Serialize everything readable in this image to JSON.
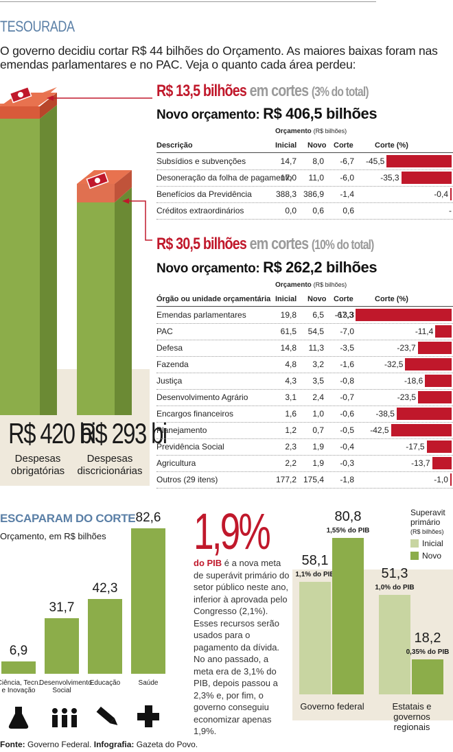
{
  "kicker": "TESOURADA",
  "intro": "O governo decidiu cortar R$ 44 bilhões do Orçamento. As maiores baixas foram nas emendas parlamentares e no PAC. Veja o quanto cada área perdeu:",
  "colors": {
    "red": "#c0182b",
    "green": "#8cad4a",
    "light_green": "#c8d5a1",
    "blue": "#5a7fa6",
    "beige": "#efe9dc"
  },
  "mandatory": {
    "cut_amount": "R$ 13,5 bilhões",
    "cut_word": "em cortes",
    "cut_share": "(3% do total)",
    "new_budget_label": "Novo orçamento:",
    "new_budget_value": "R$ 406,5 bilhões",
    "total_value": "R$ 420 bi",
    "total_caption_1": "Despesas",
    "total_caption_2": "obrigatórias"
  },
  "discretionary": {
    "cut_amount": "R$ 30,5 bilhões",
    "cut_word": "em cortes",
    "cut_share": "(10% do total)",
    "new_budget_label": "Novo orçamento:",
    "new_budget_value": "R$ 262,2 bilhões",
    "total_value": "R$ 293 bi",
    "total_caption_1": "Despesas",
    "total_caption_2": "discricionárias"
  },
  "table_headers": {
    "group": "Orçamento",
    "group_unit": "(R$ bilhões)",
    "desc1": "Descrição",
    "desc2": "Órgão ou unidade orçamentária",
    "initial": "Inicial",
    "new": "Novo",
    "cut": "Corte",
    "cut_pct": "Corte (%)"
  },
  "chart_data": [
    {
      "type": "table",
      "title": "Despesas obrigatórias — cortes",
      "columns": [
        "Descrição",
        "Inicial",
        "Novo",
        "Corte",
        "Corte (%)"
      ],
      "rows": [
        {
          "name": "Subsídios e subvenções",
          "initial": "14,7",
          "new": "8,0",
          "cut": "-6,7",
          "pct_label": "-45,5",
          "pct": -45.5
        },
        {
          "name": "Desoneração da folha de pagamento",
          "initial": "17,0",
          "new": "11,0",
          "cut": "-6,0",
          "pct_label": "-35,3",
          "pct": -35.3
        },
        {
          "name": "Benefícios da Previdência",
          "initial": "388,3",
          "new": "386,9",
          "cut": "-1,4",
          "pct_label": "-0,4",
          "pct": -0.4
        },
        {
          "name": "Créditos extraordinários",
          "initial": "0,0",
          "new": "0,6",
          "cut": "0,6",
          "pct_label": "-",
          "pct": 0
        }
      ]
    },
    {
      "type": "table",
      "title": "Despesas discricionárias — cortes",
      "columns": [
        "Órgão ou unidade orçamentária",
        "Inicial",
        "Novo",
        "Corte",
        "Corte (%)"
      ],
      "rows": [
        {
          "name": "Emendas parlamentares",
          "initial": "19,8",
          "new": "6,5",
          "cut": "-13,3",
          "pct_label": "-67,3",
          "pct": -67.3
        },
        {
          "name": "PAC",
          "initial": "61,5",
          "new": "54,5",
          "cut": "-7,0",
          "pct_label": "-11,4",
          "pct": -11.4
        },
        {
          "name": "Defesa",
          "initial": "14,8",
          "new": "11,3",
          "cut": "-3,5",
          "pct_label": "-23,7",
          "pct": -23.7
        },
        {
          "name": "Fazenda",
          "initial": "4,8",
          "new": "3,2",
          "cut": "-1,6",
          "pct_label": "-32,5",
          "pct": -32.5
        },
        {
          "name": "Justiça",
          "initial": "4,3",
          "new": "3,5",
          "cut": "-0,8",
          "pct_label": "-18,6",
          "pct": -18.6
        },
        {
          "name": "Desenvolvimento Agrário",
          "initial": "3,1",
          "new": "2,4",
          "cut": "-0,7",
          "pct_label": "-23,5",
          "pct": -23.5
        },
        {
          "name": "Encargos financeiros",
          "initial": "1,6",
          "new": "1,0",
          "cut": "-0,6",
          "pct_label": "-38,5",
          "pct": -38.5
        },
        {
          "name": "Planejamento",
          "initial": "1,2",
          "new": "0,7",
          "cut": "-0,5",
          "pct_label": "-42,5",
          "pct": -42.5
        },
        {
          "name": "Previdência Social",
          "initial": "2,3",
          "new": "1,9",
          "cut": "-0,4",
          "pct_label": "-17,5",
          "pct": -17.5
        },
        {
          "name": "Agricultura",
          "initial": "2,2",
          "new": "1,9",
          "cut": "-0,3",
          "pct_label": "-13,7",
          "pct": -13.7
        },
        {
          "name": "Outros (29 itens)",
          "initial": "177,2",
          "new": "175,4",
          "cut": "-1,8",
          "pct_label": "-1,0",
          "pct": -1.0
        }
      ]
    },
    {
      "type": "bar",
      "title": "ESCAPARAM DO CORTE",
      "subtitle": "Orçamento, em R$ bilhões",
      "categories": [
        "Ciência, Tecn. e Inovação",
        "Desenvolvimento Social",
        "Educação",
        "Saúde"
      ],
      "values": [
        6.9,
        31.7,
        42.3,
        82.6
      ],
      "value_labels": [
        "6,9",
        "31,7",
        "42,3",
        "82,6"
      ],
      "ylim": [
        0,
        82.6
      ]
    },
    {
      "type": "bar",
      "title": "Superavit primário",
      "unit": "(R$ bilhões)",
      "categories": [
        "Governo federal",
        "Estatais e governos regionais"
      ],
      "series": [
        {
          "name": "Inicial",
          "values": [
            58.1,
            51.3
          ],
          "value_labels": [
            "58,1",
            "51,3"
          ],
          "pib_labels": [
            "1,1% do PIB",
            "1,0% do PIB"
          ]
        },
        {
          "name": "Novo",
          "values": [
            80.8,
            18.2
          ],
          "value_labels": [
            "80,8",
            "18,2"
          ],
          "pib_labels": [
            "1,55% do PIB",
            "0,35% do PIB"
          ]
        }
      ],
      "ylim": [
        0,
        80.8
      ]
    },
    {
      "type": "bar",
      "title": "Despesas obrigatórias e discricionárias (R$ bi)",
      "categories": [
        "Despesas obrigatórias",
        "Despesas discricionárias"
      ],
      "values": [
        420,
        293
      ],
      "cuts": [
        13.5,
        30.5
      ]
    }
  ],
  "pib": {
    "big": "1,9%",
    "lead": "do PIB",
    "text": " é a nova meta de superávit primário do setor público neste ano, inferior à aprovada pelo Congresso (2,1%). Esses recursos serão usados para o pagamento da dívida. No ano passado, a meta era de 3,1% do PIB, depois passou a 2,3% e, por fim, o governo conseguiu economizar apenas 1,9%."
  },
  "superavit_title_1": "Superavit",
  "superavit_title_2": "primário",
  "superavit_unit": "(R$ bilhões)",
  "legend_initial": "Inicial",
  "legend_new": "Novo",
  "icons": [
    "flask-icon",
    "people-icon",
    "pencil-icon",
    "plus-cross-icon",
    "money-bill-icon"
  ],
  "footer": {
    "source_label": "Fonte:",
    "source": "Governo Federal.",
    "credit_label": "Infografia:",
    "credit": "Gazeta do Povo."
  }
}
